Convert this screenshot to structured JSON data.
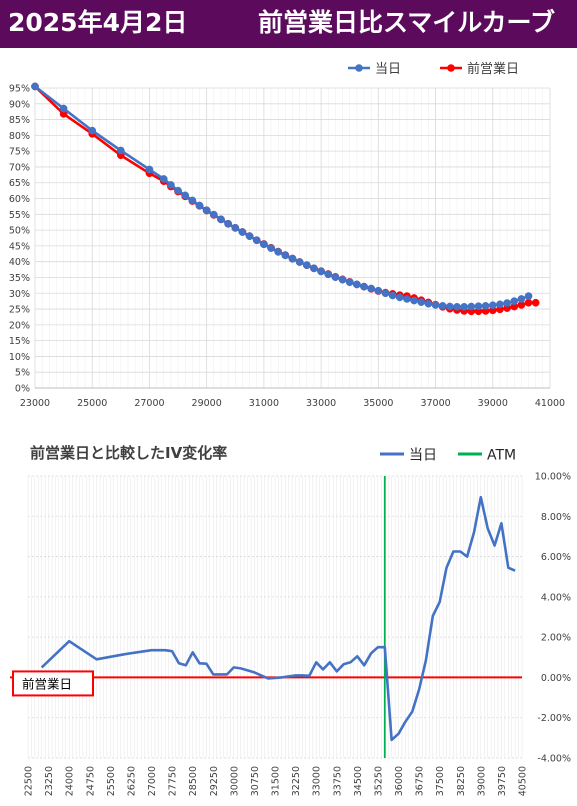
{
  "header": {
    "date": "2025年4月2日",
    "title": "前営業日比スマイルカーブ"
  },
  "colors": {
    "header_bg": "#5c0b5c",
    "today": "#4472c4",
    "prev_day": "#ff0000",
    "atm": "#00b050",
    "zero_line": "#ff0000",
    "iv_line": "#4472c4"
  },
  "chart_data": [
    {
      "type": "line",
      "title": "",
      "xlim": [
        23000,
        41000
      ],
      "ylim": [
        0,
        0.95
      ],
      "x_ticks": [
        "23000",
        "25000",
        "27000",
        "29000",
        "31000",
        "33000",
        "35000",
        "37000",
        "39000",
        "41000"
      ],
      "y_ticks": [
        "0%",
        "5%",
        "10%",
        "15%",
        "20%",
        "25%",
        "30%",
        "35%",
        "40%",
        "45%",
        "50%",
        "55%",
        "60%",
        "65%",
        "70%",
        "75%",
        "80%",
        "85%",
        "90%",
        "95%"
      ],
      "grid": true,
      "legend_position": "top-right",
      "series": [
        {
          "name": "当日",
          "color": "#4472c4",
          "points": [
            [
              23000,
              0.955
            ],
            [
              24000,
              0.885
            ],
            [
              25000,
              0.815
            ],
            [
              26000,
              0.752
            ],
            [
              27000,
              0.692
            ],
            [
              27500,
              0.662
            ],
            [
              27750,
              0.643
            ],
            [
              28000,
              0.625
            ],
            [
              28250,
              0.61
            ],
            [
              28500,
              0.594
            ],
            [
              28750,
              0.578
            ],
            [
              29000,
              0.563
            ],
            [
              29250,
              0.549
            ],
            [
              29500,
              0.534
            ],
            [
              29750,
              0.52
            ],
            [
              30000,
              0.507
            ],
            [
              30250,
              0.494
            ],
            [
              30500,
              0.481
            ],
            [
              30750,
              0.468
            ],
            [
              31000,
              0.455
            ],
            [
              31250,
              0.443
            ],
            [
              31500,
              0.431
            ],
            [
              31750,
              0.42
            ],
            [
              32000,
              0.409
            ],
            [
              32250,
              0.399
            ],
            [
              32500,
              0.389
            ],
            [
              32750,
              0.379
            ],
            [
              33000,
              0.369
            ],
            [
              33250,
              0.36
            ],
            [
              33500,
              0.351
            ],
            [
              33750,
              0.343
            ],
            [
              34000,
              0.335
            ],
            [
              34250,
              0.328
            ],
            [
              34500,
              0.321
            ],
            [
              34750,
              0.315
            ],
            [
              35000,
              0.308
            ],
            [
              35250,
              0.3
            ],
            [
              35500,
              0.293
            ],
            [
              35750,
              0.287
            ],
            [
              36000,
              0.282
            ],
            [
              36250,
              0.277
            ],
            [
              36500,
              0.272
            ],
            [
              36750,
              0.267
            ],
            [
              37000,
              0.263
            ],
            [
              37250,
              0.26
            ],
            [
              37500,
              0.258
            ],
            [
              37750,
              0.257
            ],
            [
              38000,
              0.257
            ],
            [
              38250,
              0.258
            ],
            [
              38500,
              0.259
            ],
            [
              38750,
              0.26
            ],
            [
              39000,
              0.262
            ],
            [
              39250,
              0.265
            ],
            [
              39500,
              0.269
            ],
            [
              39750,
              0.275
            ],
            [
              40000,
              0.282
            ],
            [
              40250,
              0.291
            ]
          ]
        },
        {
          "name": "前営業日",
          "color": "#ff0000",
          "points": [
            [
              23000,
              0.955
            ],
            [
              24000,
              0.868
            ],
            [
              25000,
              0.805
            ],
            [
              26000,
              0.737
            ],
            [
              27000,
              0.68
            ],
            [
              27500,
              0.655
            ],
            [
              27750,
              0.638
            ],
            [
              28000,
              0.622
            ],
            [
              28250,
              0.607
            ],
            [
              28500,
              0.592
            ],
            [
              28750,
              0.577
            ],
            [
              29000,
              0.562
            ],
            [
              29250,
              0.548
            ],
            [
              29500,
              0.534
            ],
            [
              29750,
              0.52
            ],
            [
              30000,
              0.507
            ],
            [
              30250,
              0.494
            ],
            [
              30500,
              0.481
            ],
            [
              30750,
              0.468
            ],
            [
              31000,
              0.456
            ],
            [
              31250,
              0.444
            ],
            [
              31500,
              0.432
            ],
            [
              31750,
              0.421
            ],
            [
              32000,
              0.41
            ],
            [
              32250,
              0.399
            ],
            [
              32500,
              0.389
            ],
            [
              32750,
              0.379
            ],
            [
              33000,
              0.37
            ],
            [
              33250,
              0.361
            ],
            [
              33500,
              0.352
            ],
            [
              33750,
              0.344
            ],
            [
              34000,
              0.336
            ],
            [
              34250,
              0.328
            ],
            [
              34500,
              0.321
            ],
            [
              34750,
              0.314
            ],
            [
              35000,
              0.307
            ],
            [
              35250,
              0.302
            ],
            [
              35500,
              0.298
            ],
            [
              35750,
              0.294
            ],
            [
              36000,
              0.291
            ],
            [
              36250,
              0.285
            ],
            [
              36500,
              0.278
            ],
            [
              36750,
              0.271
            ],
            [
              37000,
              0.264
            ],
            [
              37250,
              0.257
            ],
            [
              37500,
              0.251
            ],
            [
              37750,
              0.247
            ],
            [
              38000,
              0.244
            ],
            [
              38250,
              0.243
            ],
            [
              38500,
              0.243
            ],
            [
              38750,
              0.244
            ],
            [
              39000,
              0.246
            ],
            [
              39250,
              0.249
            ],
            [
              39500,
              0.253
            ],
            [
              39750,
              0.258
            ],
            [
              40000,
              0.263
            ],
            [
              40250,
              0.27
            ],
            [
              40500,
              0.27
            ]
          ]
        }
      ]
    },
    {
      "type": "line",
      "title": "前営業日と比較したIV変化率",
      "xlim": [
        22500,
        40500
      ],
      "ylim": [
        -0.04,
        0.1
      ],
      "x_ticks": [
        "22500",
        "23250",
        "24000",
        "24750",
        "25500",
        "26250",
        "27000",
        "27750",
        "28500",
        "29250",
        "30000",
        "30750",
        "31500",
        "32250",
        "33000",
        "33750",
        "34500",
        "35250",
        "36000",
        "36750",
        "37500",
        "38250",
        "39000",
        "39750",
        "40500"
      ],
      "y_ticks": [
        "-4.00%",
        "-2.00%",
        "0.00%",
        "2.00%",
        "4.00%",
        "6.00%",
        "8.00%",
        "10.00%"
      ],
      "grid": true,
      "legend_position": "top-right",
      "zero_label": "前営業日",
      "atm_x": 35500,
      "series": [
        {
          "name": "当日",
          "color": "#4472c4",
          "points": [
            [
              23000,
              0.005
            ],
            [
              24000,
              0.018
            ],
            [
              25000,
              0.009
            ],
            [
              26000,
              0.0115
            ],
            [
              27000,
              0.0135
            ],
            [
              27500,
              0.0135
            ],
            [
              27750,
              0.013
            ],
            [
              28000,
              0.007
            ],
            [
              28250,
              0.006
            ],
            [
              28500,
              0.0125
            ],
            [
              28750,
              0.007
            ],
            [
              29000,
              0.0068
            ],
            [
              29250,
              0.0015
            ],
            [
              29500,
              0.0015
            ],
            [
              29750,
              0.0015
            ],
            [
              30000,
              0.005
            ],
            [
              30250,
              0.0045
            ],
            [
              30500,
              0.0035
            ],
            [
              30750,
              0.0025
            ],
            [
              31000,
              0.001
            ],
            [
              31250,
              -0.0005
            ],
            [
              31500,
              -0.0003
            ],
            [
              31750,
              0.0
            ],
            [
              32000,
              0.0005
            ],
            [
              32250,
              0.001
            ],
            [
              32500,
              0.001
            ],
            [
              32750,
              0.0008
            ],
            [
              33000,
              0.0075
            ],
            [
              33250,
              0.004
            ],
            [
              33500,
              0.0075
            ],
            [
              33750,
              0.003
            ],
            [
              34000,
              0.0065
            ],
            [
              34250,
              0.0075
            ],
            [
              34500,
              0.0105
            ],
            [
              34750,
              0.006
            ],
            [
              35000,
              0.012
            ],
            [
              35250,
              0.015
            ],
            [
              35500,
              0.015
            ],
            [
              35750,
              -0.031
            ],
            [
              36000,
              -0.028
            ],
            [
              36250,
              -0.022
            ],
            [
              36500,
              -0.017
            ],
            [
              36750,
              -0.006
            ],
            [
              37000,
              0.0085
            ],
            [
              37250,
              0.0305
            ],
            [
              37500,
              0.0375
            ],
            [
              37750,
              0.0545
            ],
            [
              38000,
              0.0625
            ],
            [
              38250,
              0.0625
            ],
            [
              38500,
              0.06
            ],
            [
              38750,
              0.072
            ],
            [
              39000,
              0.0895
            ],
            [
              39250,
              0.074
            ],
            [
              39500,
              0.0655
            ],
            [
              39750,
              0.0765
            ],
            [
              40000,
              0.0545
            ],
            [
              40250,
              0.053
            ]
          ]
        },
        {
          "name": "ATM",
          "color": "#00b050",
          "points": []
        }
      ]
    }
  ]
}
